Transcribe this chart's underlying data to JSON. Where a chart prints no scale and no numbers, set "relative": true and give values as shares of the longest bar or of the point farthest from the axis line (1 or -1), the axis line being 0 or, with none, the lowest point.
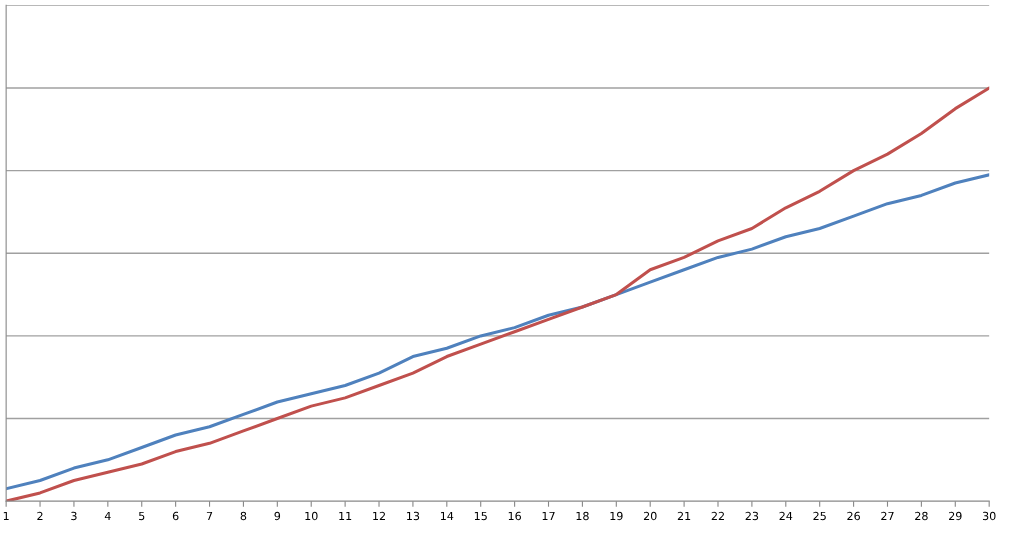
{
  "chart_data": {
    "type": "line",
    "relative": true,
    "grid": "y",
    "tick_labels": "x",
    "marker": "none",
    "line_style": "solid",
    "categories": [
      "1",
      "2",
      "3",
      "4",
      "5",
      "6",
      "7",
      "8",
      "9",
      "10",
      "11",
      "12",
      "13",
      "14",
      "15",
      "16",
      "17",
      "18",
      "19",
      "20",
      "21",
      "22",
      "23",
      "24",
      "25",
      "26",
      "27",
      "28",
      "29",
      "30"
    ],
    "series": [
      {
        "color": "#4f81bd",
        "values": [
          0.03,
          0.05,
          0.08,
          0.1,
          0.13,
          0.16,
          0.18,
          0.21,
          0.24,
          0.26,
          0.28,
          0.31,
          0.35,
          0.37,
          0.4,
          0.42,
          0.45,
          0.47,
          0.5,
          0.53,
          0.56,
          0.59,
          0.61,
          0.64,
          0.66,
          0.69,
          0.72,
          0.74,
          0.77,
          0.79
        ]
      },
      {
        "color": "#c0504d",
        "values": [
          0,
          0.02,
          0.05,
          0.07,
          0.09,
          0.12,
          0.14,
          0.17,
          0.2,
          0.23,
          0.25,
          0.28,
          0.31,
          0.35,
          0.38,
          0.41,
          0.44,
          0.47,
          0.5,
          0.56,
          0.59,
          0.63,
          0.66,
          0.71,
          0.75,
          0.8,
          0.84,
          0.89,
          0.95,
          1
        ]
      }
    ]
  }
}
